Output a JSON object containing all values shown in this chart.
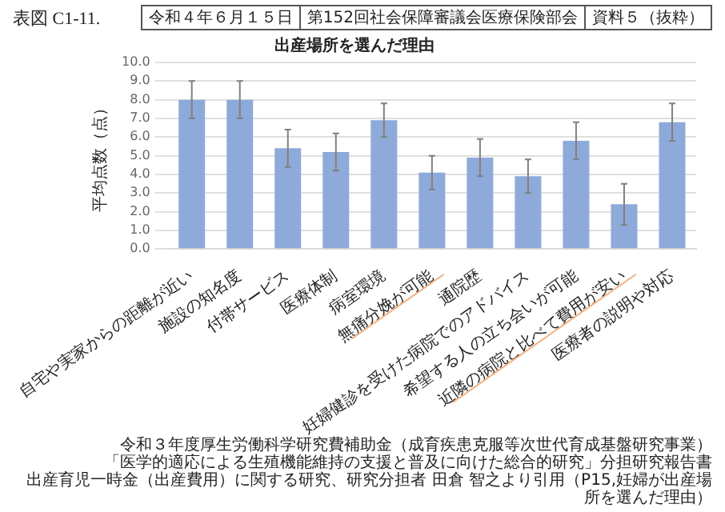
{
  "chart_data": {
    "type": "bar",
    "title": "出産場所を選んだ理由",
    "ylabel": "平均点数（点）",
    "categories": [
      "自宅や実家からの距離が近い",
      "施設の知名度",
      "付帯サービス",
      "医療体制",
      "病室環境",
      "無痛分娩が可能",
      "通院歴",
      "妊婦健診を受けた病院でのアドバイス",
      "希望する人の立ち会いが可能",
      "近隣の病院と比べて費用が安い",
      "医療者の説明や対応"
    ],
    "values": [
      8.0,
      8.0,
      5.4,
      5.2,
      6.9,
      4.1,
      4.9,
      3.9,
      5.8,
      2.4,
      6.8
    ],
    "errors": [
      1.0,
      1.0,
      1.0,
      1.0,
      0.9,
      0.9,
      1.0,
      0.9,
      1.0,
      1.1,
      1.0
    ],
    "color": "#8eaadb",
    "ylim": [
      0,
      10
    ],
    "yticks": [
      {
        "value": 0,
        "label": "0.0"
      },
      {
        "value": 1,
        "label": "1.0"
      },
      {
        "value": 2,
        "label": "2.0"
      },
      {
        "value": 3,
        "label": "3.0"
      },
      {
        "value": 4,
        "label": "4.0"
      },
      {
        "value": 5,
        "label": "5.0"
      },
      {
        "value": 6,
        "label": "6.0"
      },
      {
        "value": 7,
        "label": "7.0"
      },
      {
        "value": 8,
        "label": "8.0"
      },
      {
        "value": 9,
        "label": "9.0"
      },
      {
        "value": 10,
        "label": "10.0"
      }
    ],
    "grid": "y",
    "legend": false,
    "annotations": [
      "表図 C1-11.",
      "令和４年６月１５日",
      "第152回社会保障審議会医療保険部会",
      "資料５（抜粋）",
      "令和３年度厚生労働科学研究費補助金（成育疾患克服等次世代育成基盤研究事業）",
      "「医学的適応による生殖機能維持の支援と普及に向けた総合的研究」分担研究報告書",
      "出産育児一時金（出産費用）に関する研究、研究分担者 田倉 智之より引用（P15,妊婦が出産場所を選んだ理由）"
    ]
  }
}
